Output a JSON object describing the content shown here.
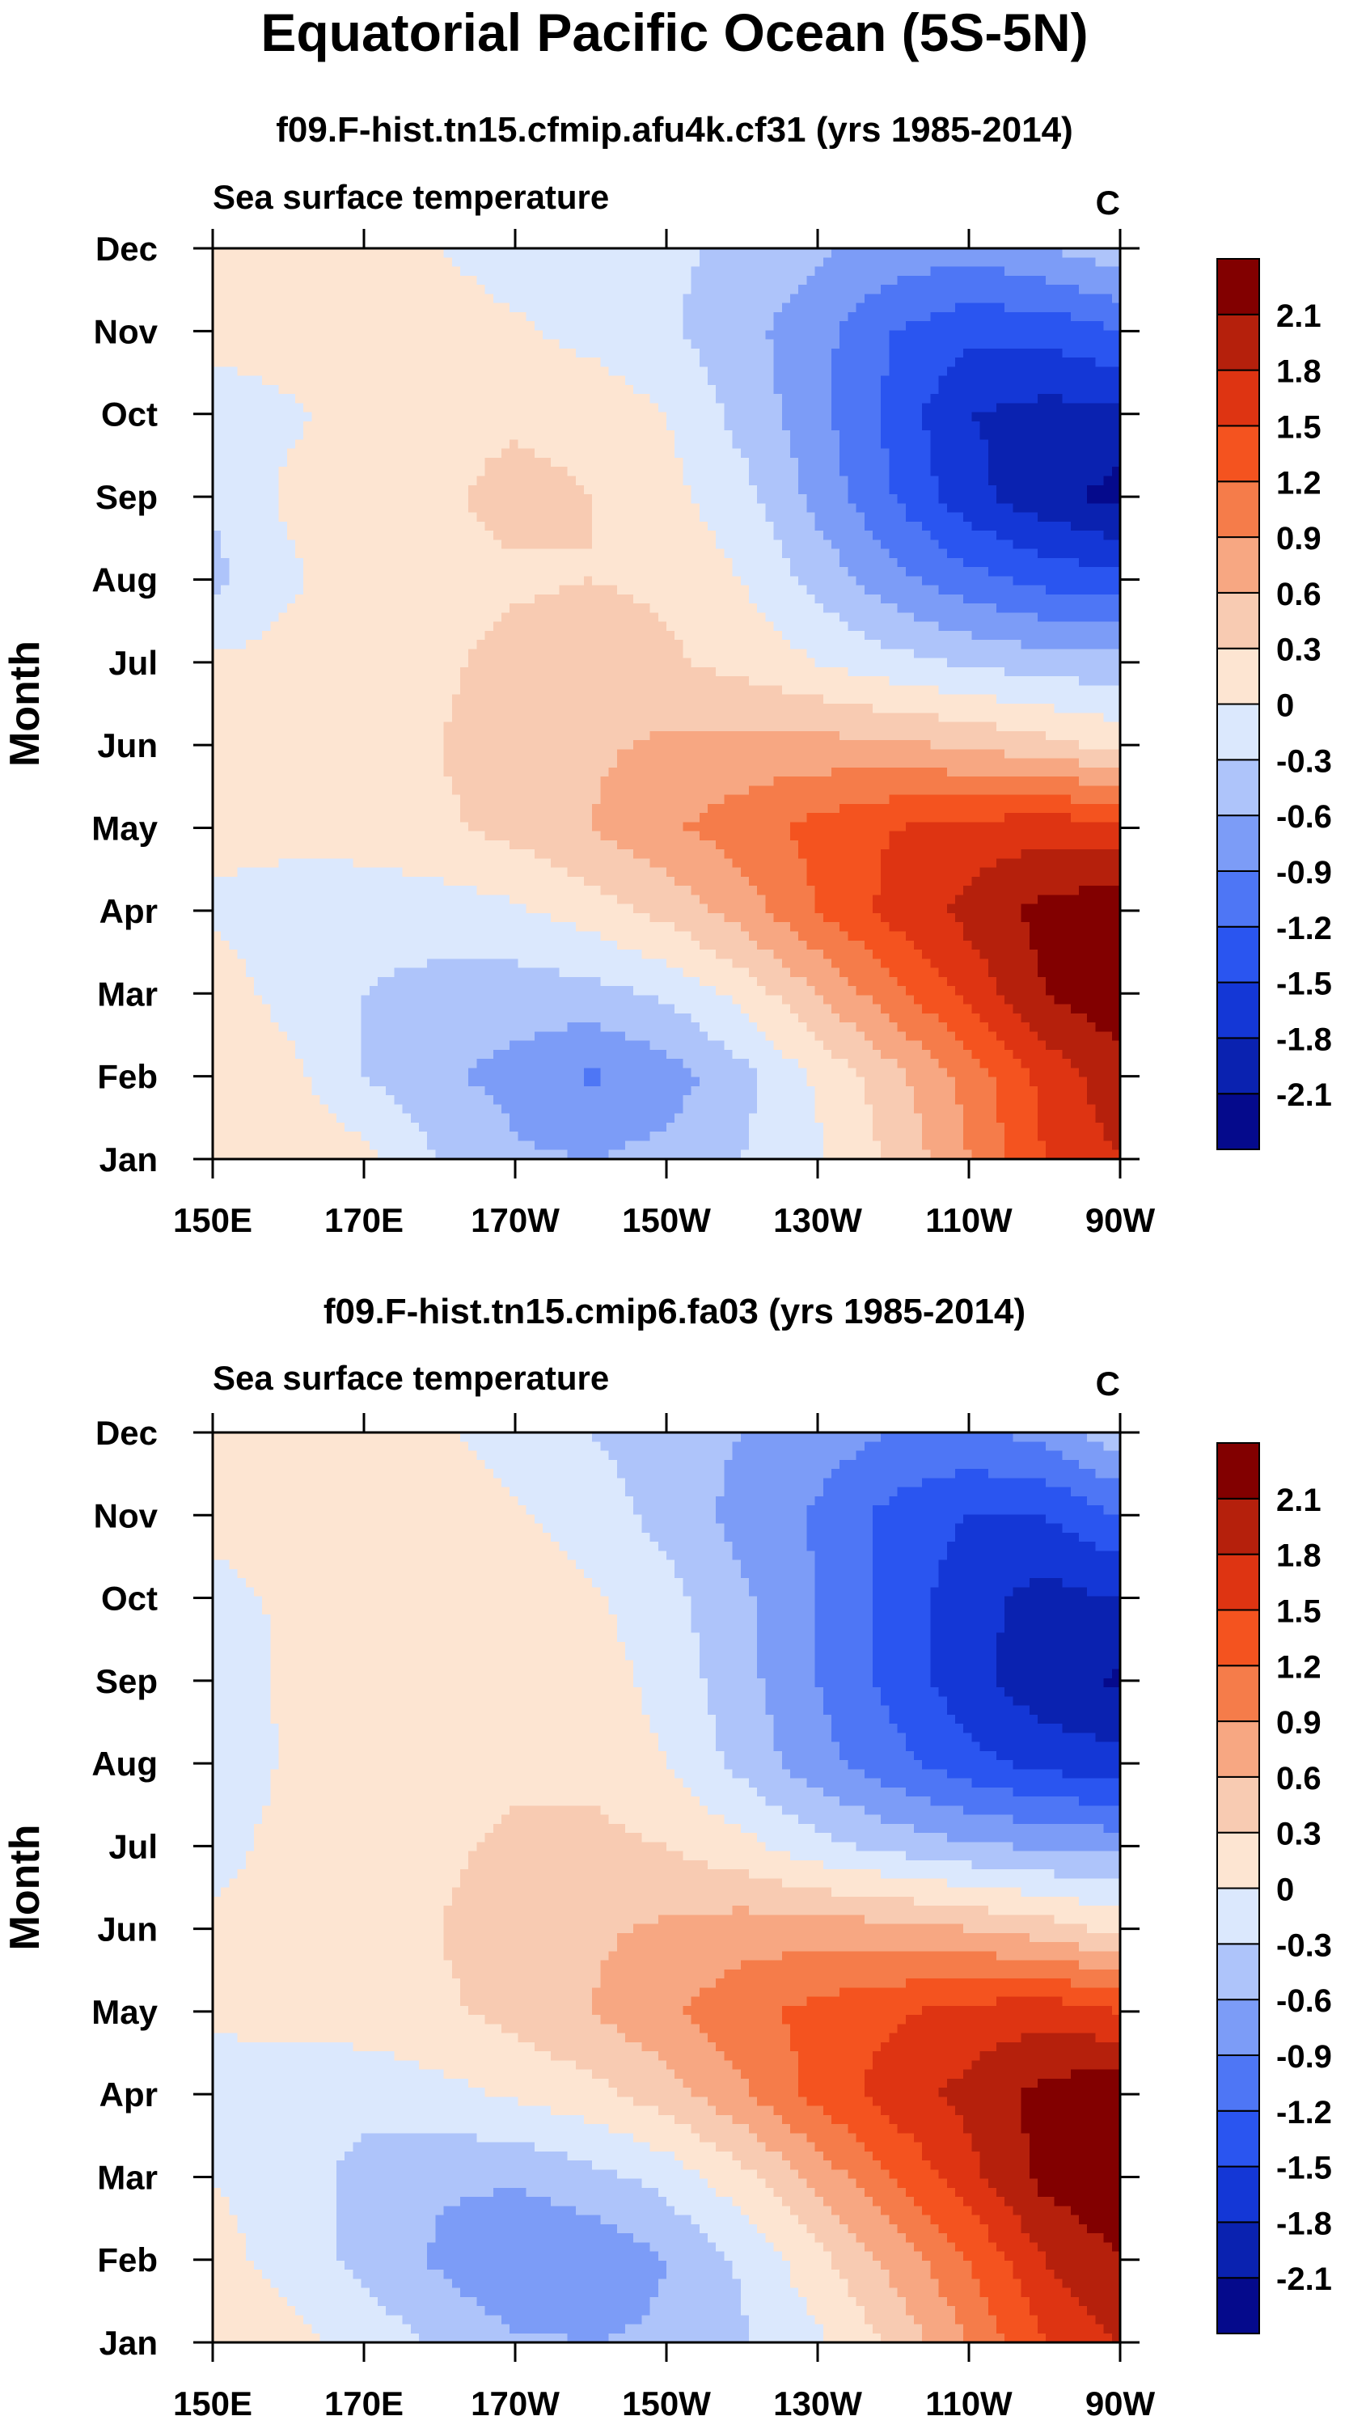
{
  "figure": {
    "title": "Equatorial Pacific Ocean (5S-5N)"
  },
  "chart_data": [
    {
      "type": "heatmap",
      "title": "f09.F-hist.tn15.cfmip.afu4k.cf31 (yrs 1985-2014)",
      "subtitle": "Sea surface temperature",
      "units": "C",
      "xlabel": "",
      "ylabel": "Month",
      "xticks": [
        "150E",
        "170E",
        "170W",
        "150W",
        "130W",
        "110W",
        "90W"
      ],
      "yticks": [
        "Jan",
        "Feb",
        "Mar",
        "Apr",
        "May",
        "Jun",
        "Jul",
        "Aug",
        "Sep",
        "Oct",
        "Nov",
        "Dec"
      ],
      "x_deg_east": [
        150,
        160,
        170,
        180,
        190,
        200,
        210,
        220,
        230,
        240,
        250,
        260,
        270
      ],
      "values": [
        [
          0.25,
          0.2,
          0.1,
          -0.3,
          -0.55,
          -0.6,
          -0.5,
          -0.3,
          -0.05,
          0.35,
          0.9,
          1.5,
          1.8
        ],
        [
          0.2,
          0.1,
          -0.3,
          -0.55,
          -0.7,
          -0.95,
          -0.75,
          -0.4,
          0.05,
          0.5,
          1.0,
          1.6,
          2.0
        ],
        [
          0.15,
          -0.1,
          -0.3,
          -0.4,
          -0.45,
          -0.4,
          -0.25,
          0.1,
          0.6,
          1.1,
          1.6,
          2.1,
          2.3
        ],
        [
          -0.05,
          -0.15,
          -0.2,
          -0.15,
          -0.05,
          0.15,
          0.4,
          0.75,
          1.2,
          1.6,
          1.9,
          2.2,
          2.3
        ],
        [
          0.1,
          0.1,
          0.15,
          0.25,
          0.4,
          0.6,
          0.85,
          1.05,
          1.3,
          1.5,
          1.6,
          1.7,
          1.6
        ],
        [
          0.1,
          0.15,
          0.2,
          0.3,
          0.45,
          0.55,
          0.65,
          0.7,
          0.7,
          0.65,
          0.55,
          0.4,
          0.2
        ],
        [
          0.05,
          0.1,
          0.15,
          0.25,
          0.4,
          0.45,
          0.35,
          0.2,
          0.0,
          -0.2,
          -0.35,
          -0.45,
          -0.5
        ],
        [
          -0.4,
          -0.05,
          0.15,
          0.2,
          0.25,
          0.3,
          0.25,
          0.0,
          -0.4,
          -0.8,
          -1.1,
          -1.3,
          -1.4
        ],
        [
          -0.25,
          0.05,
          0.15,
          0.25,
          0.4,
          0.3,
          0.1,
          -0.2,
          -0.7,
          -1.2,
          -1.7,
          -2.0,
          -2.2
        ],
        [
          -0.15,
          -0.05,
          0.1,
          0.2,
          0.25,
          0.2,
          0.0,
          -0.4,
          -0.8,
          -1.3,
          -1.8,
          -1.9,
          -1.9
        ],
        [
          0.1,
          0.15,
          0.15,
          0.15,
          0.05,
          -0.1,
          -0.25,
          -0.5,
          -0.8,
          -1.2,
          -1.4,
          -1.4,
          -1.2
        ],
        [
          0.1,
          0.1,
          0.1,
          0.0,
          -0.15,
          -0.2,
          -0.25,
          -0.35,
          -0.55,
          -0.7,
          -0.8,
          -0.6,
          -0.4
        ]
      ],
      "colorbar": {
        "levels": [
          -2.1,
          -1.8,
          -1.5,
          -1.2,
          -0.9,
          -0.6,
          -0.3,
          0,
          0.3,
          0.6,
          0.9,
          1.2,
          1.5,
          1.8,
          2.1
        ],
        "labels": [
          "-2.1",
          "-1.8",
          "-1.5",
          "-1.2",
          "-0.9",
          "-0.6",
          "-0.3",
          "0",
          "0.3",
          "0.6",
          "0.9",
          "1.2",
          "1.5",
          "1.8",
          "2.1"
        ]
      }
    },
    {
      "type": "heatmap",
      "title": "f09.F-hist.tn15.cmip6.fa03 (yrs 1985-2014)",
      "subtitle": "Sea surface temperature",
      "units": "C",
      "xlabel": "",
      "ylabel": "Month",
      "xticks": [
        "150E",
        "170E",
        "170W",
        "150W",
        "130W",
        "110W",
        "90W"
      ],
      "yticks": [
        "Jan",
        "Feb",
        "Mar",
        "Apr",
        "May",
        "Jun",
        "Jul",
        "Aug",
        "Sep",
        "Oct",
        "Nov",
        "Dec"
      ],
      "x_deg_east": [
        150,
        160,
        170,
        180,
        190,
        200,
        210,
        220,
        230,
        240,
        250,
        260,
        270
      ],
      "values": [
        [
          0.2,
          0.1,
          -0.1,
          -0.35,
          -0.55,
          -0.6,
          -0.55,
          -0.35,
          -0.05,
          0.35,
          0.9,
          1.5,
          1.8
        ],
        [
          0.1,
          -0.1,
          -0.4,
          -0.65,
          -0.9,
          -0.85,
          -0.6,
          -0.25,
          0.2,
          0.7,
          1.2,
          1.8,
          2.1
        ],
        [
          0.0,
          -0.15,
          -0.4,
          -0.55,
          -0.55,
          -0.4,
          -0.2,
          0.2,
          0.7,
          1.2,
          1.7,
          2.2,
          2.35
        ],
        [
          -0.15,
          -0.15,
          -0.2,
          -0.1,
          0.05,
          0.2,
          0.45,
          0.85,
          1.3,
          1.65,
          1.9,
          2.2,
          2.35
        ],
        [
          0.05,
          0.1,
          0.15,
          0.25,
          0.4,
          0.6,
          0.85,
          1.1,
          1.3,
          1.45,
          1.6,
          1.7,
          1.5
        ],
        [
          0.05,
          0.1,
          0.2,
          0.3,
          0.45,
          0.55,
          0.65,
          0.75,
          0.75,
          0.7,
          0.6,
          0.45,
          0.2
        ],
        [
          -0.1,
          0.1,
          0.15,
          0.25,
          0.35,
          0.4,
          0.3,
          0.1,
          -0.2,
          -0.4,
          -0.55,
          -0.65,
          -0.7
        ],
        [
          -0.25,
          0.05,
          0.15,
          0.2,
          0.25,
          0.2,
          0.0,
          -0.4,
          -0.8,
          -1.1,
          -1.4,
          -1.6,
          -1.7
        ],
        [
          -0.2,
          0.05,
          0.15,
          0.25,
          0.3,
          0.15,
          -0.1,
          -0.5,
          -0.9,
          -1.3,
          -1.7,
          -2.0,
          -2.15
        ],
        [
          -0.1,
          0.05,
          0.15,
          0.3,
          0.2,
          0.05,
          -0.2,
          -0.55,
          -0.9,
          -1.3,
          -1.7,
          -1.9,
          -1.8
        ],
        [
          0.1,
          0.15,
          0.15,
          0.15,
          0.05,
          -0.15,
          -0.4,
          -0.7,
          -0.95,
          -1.3,
          -1.5,
          -1.5,
          -1.2
        ],
        [
          0.1,
          0.1,
          0.1,
          0.05,
          -0.15,
          -0.3,
          -0.45,
          -0.6,
          -0.75,
          -0.9,
          -0.95,
          -0.8,
          -0.4
        ]
      ],
      "colorbar": {
        "levels": [
          -2.1,
          -1.8,
          -1.5,
          -1.2,
          -0.9,
          -0.6,
          -0.3,
          0,
          0.3,
          0.6,
          0.9,
          1.2,
          1.5,
          1.8,
          2.1
        ],
        "labels": [
          "-2.1",
          "-1.8",
          "-1.5",
          "-1.2",
          "-0.9",
          "-0.6",
          "-0.3",
          "0",
          "0.3",
          "0.6",
          "0.9",
          "1.2",
          "1.5",
          "1.8",
          "2.1"
        ]
      }
    }
  ],
  "palette": {
    "colors": [
      "#050a8c",
      "#0a22b0",
      "#1437d6",
      "#2a55f0",
      "#4e76f5",
      "#7c9cf7",
      "#aec4fa",
      "#dbe8fd",
      "#fde5d2",
      "#f8cbb2",
      "#f7a782",
      "#f57c4a",
      "#f4531f",
      "#de3412",
      "#b5200c",
      "#820000"
    ],
    "axis_color": "#000000",
    "background": "#ffffff"
  }
}
